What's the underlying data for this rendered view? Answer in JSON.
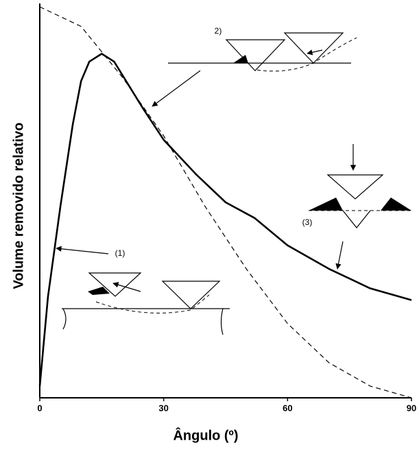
{
  "chart_data": {
    "type": "line",
    "x_label": "Ângulo (º)",
    "y_label": "Volume removido relativo",
    "annotations": [
      "(1)",
      "2)",
      "(3)"
    ],
    "xlim": [
      0,
      90
    ],
    "xticks": [
      0,
      30,
      60,
      90
    ],
    "ylim": [
      0,
      1
    ],
    "series": [
      {
        "color": "#000000",
        "linestyle": "solid",
        "x": [
          0,
          2,
          5,
          8,
          10,
          12,
          15,
          18,
          25,
          30,
          38,
          45,
          52,
          60,
          70,
          80,
          90
        ],
        "values": [
          0.03,
          0.26,
          0.49,
          0.7,
          0.81,
          0.86,
          0.88,
          0.86,
          0.74,
          0.66,
          0.57,
          0.5,
          0.46,
          0.39,
          0.33,
          0.28,
          0.25
        ]
      },
      {
        "color": "#000000",
        "linestyle": "dashed",
        "x": [
          0,
          10,
          20,
          30,
          40,
          50,
          60,
          70,
          80,
          90
        ],
        "values": [
          1.0,
          0.95,
          0.82,
          0.67,
          0.49,
          0.33,
          0.19,
          0.09,
          0.03,
          0.0
        ]
      }
    ]
  }
}
